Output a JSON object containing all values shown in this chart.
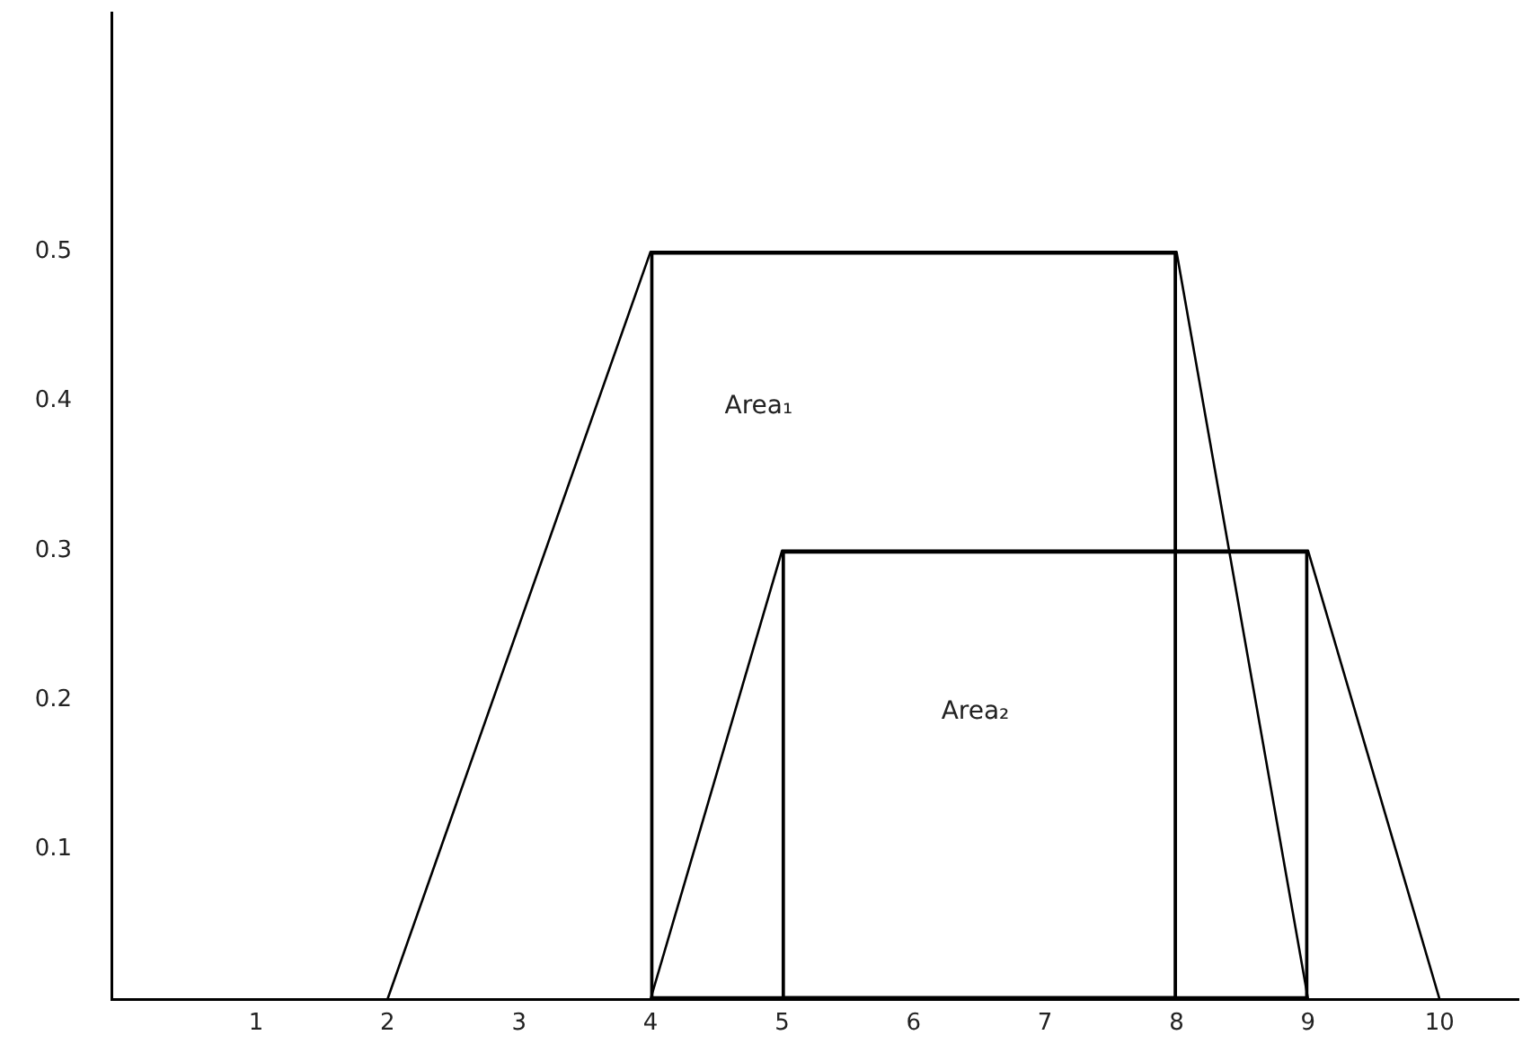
{
  "chart_data": {
    "type": "line",
    "marker": "none",
    "series": [
      {
        "color": "#000000",
        "x": [
          2,
          4,
          8,
          9
        ],
        "values": [
          0,
          0.5,
          0.5,
          0
        ]
      },
      {
        "color": "#000000",
        "x": [
          4,
          5,
          9,
          10
        ],
        "values": [
          0,
          0.3,
          0.3,
          0
        ]
      },
      {
        "type": "histogram",
        "color": "#000000",
        "bins": [
          4,
          8
        ],
        "values": [
          0.5
        ]
      },
      {
        "type": "histogram",
        "color": "#000000",
        "bins": [
          5,
          9
        ],
        "values": [
          0.3
        ]
      }
    ],
    "xlim": [
      -0.1,
      10.6
    ],
    "xticks": [
      1,
      2,
      3,
      4,
      5,
      6,
      7,
      8,
      9,
      10
    ],
    "ylim": [
      0,
      0.66
    ],
    "yticks": [
      0.1,
      0.2,
      0.3,
      0.4,
      0.5
    ],
    "annotations": [
      "Area₁",
      "Area₂"
    ]
  }
}
